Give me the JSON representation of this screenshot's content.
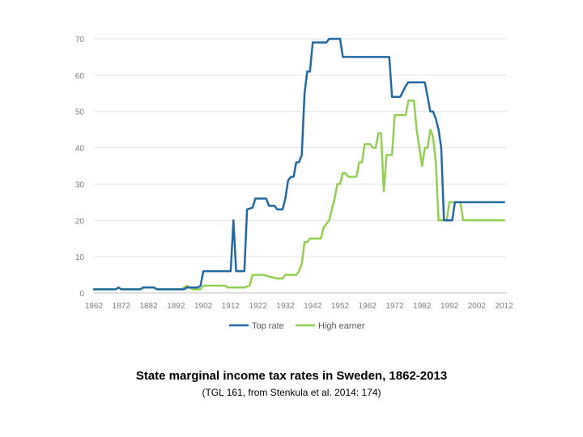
{
  "caption": {
    "title": "State marginal income tax rates in Sweden, 1862-2013",
    "source": "(TGL 161, from Stenkula et al. 2014: 174)"
  },
  "chart_data": {
    "type": "line",
    "title": "State marginal income tax rates in Sweden, 1862-2013",
    "xlabel": "",
    "ylabel": "",
    "xlim": [
      1862,
      2013
    ],
    "ylim": [
      0,
      70
    ],
    "x_ticks": [
      1862,
      1872,
      1882,
      1892,
      1902,
      1912,
      1922,
      1932,
      1942,
      1952,
      1962,
      1972,
      1982,
      1992,
      2002,
      2012
    ],
    "y_ticks": [
      0,
      10,
      20,
      30,
      40,
      50,
      60,
      70
    ],
    "grid": true,
    "legend_position": "bottom",
    "series": [
      {
        "name": "Top rate",
        "color": "#1f6aa5",
        "points": [
          [
            1862,
            1
          ],
          [
            1870,
            1
          ],
          [
            1871,
            1.5
          ],
          [
            1872,
            1
          ],
          [
            1879,
            1
          ],
          [
            1880,
            1.5
          ],
          [
            1884,
            1.5
          ],
          [
            1885,
            1
          ],
          [
            1895,
            1
          ],
          [
            1896,
            1.5
          ],
          [
            1900,
            1.5
          ],
          [
            1901,
            2
          ],
          [
            1902,
            6
          ],
          [
            1912,
            6
          ],
          [
            1913,
            20
          ],
          [
            1914,
            6
          ],
          [
            1917,
            6
          ],
          [
            1918,
            23
          ],
          [
            1920,
            23.5
          ],
          [
            1921,
            26
          ],
          [
            1925,
            26
          ],
          [
            1926,
            24
          ],
          [
            1928,
            24
          ],
          [
            1929,
            23
          ],
          [
            1931,
            23
          ],
          [
            1932,
            26
          ],
          [
            1933,
            31
          ],
          [
            1934,
            32
          ],
          [
            1935,
            32
          ],
          [
            1936,
            36
          ],
          [
            1937,
            36
          ],
          [
            1938,
            38
          ],
          [
            1939,
            55
          ],
          [
            1940,
            61
          ],
          [
            1941,
            61
          ],
          [
            1942,
            69
          ],
          [
            1947,
            69
          ],
          [
            1948,
            70
          ],
          [
            1952,
            70
          ],
          [
            1953,
            65
          ],
          [
            1970,
            65
          ],
          [
            1971,
            54
          ],
          [
            1974,
            54
          ],
          [
            1976,
            57
          ],
          [
            1977,
            58
          ],
          [
            1983,
            58
          ],
          [
            1984,
            54
          ],
          [
            1985,
            50
          ],
          [
            1986,
            50
          ],
          [
            1987,
            48
          ],
          [
            1988,
            45
          ],
          [
            1989,
            40
          ],
          [
            1990,
            20
          ],
          [
            1993,
            20
          ],
          [
            1994,
            25
          ],
          [
            2012,
            25
          ]
        ]
      },
      {
        "name": "High earner",
        "color": "#92d050",
        "points": [
          [
            1862,
            1
          ],
          [
            1870,
            1
          ],
          [
            1871,
            1.5
          ],
          [
            1872,
            1
          ],
          [
            1879,
            1
          ],
          [
            1880,
            1.5
          ],
          [
            1884,
            1.5
          ],
          [
            1885,
            1
          ],
          [
            1894,
            1
          ],
          [
            1896,
            2
          ],
          [
            1898,
            1
          ],
          [
            1901,
            1
          ],
          [
            1902,
            2
          ],
          [
            1910,
            2
          ],
          [
            1911,
            1.5
          ],
          [
            1917,
            1.5
          ],
          [
            1919,
            2
          ],
          [
            1920,
            5
          ],
          [
            1924,
            5
          ],
          [
            1926,
            4.5
          ],
          [
            1929,
            4
          ],
          [
            1931,
            4
          ],
          [
            1932,
            5
          ],
          [
            1936,
            5
          ],
          [
            1937,
            6
          ],
          [
            1938,
            8
          ],
          [
            1939,
            14
          ],
          [
            1940,
            14
          ],
          [
            1941,
            15
          ],
          [
            1945,
            15
          ],
          [
            1946,
            18
          ],
          [
            1948,
            20
          ],
          [
            1950,
            26
          ],
          [
            1951,
            30
          ],
          [
            1952,
            30
          ],
          [
            1953,
            33
          ],
          [
            1954,
            33
          ],
          [
            1955,
            32
          ],
          [
            1958,
            32
          ],
          [
            1959,
            36
          ],
          [
            1960,
            36
          ],
          [
            1961,
            41
          ],
          [
            1963,
            41
          ],
          [
            1964,
            40
          ],
          [
            1965,
            40
          ],
          [
            1966,
            44
          ],
          [
            1967,
            44
          ],
          [
            1968,
            28
          ],
          [
            1969,
            38
          ],
          [
            1971,
            38
          ],
          [
            1972,
            49
          ],
          [
            1976,
            49
          ],
          [
            1977,
            53
          ],
          [
            1979,
            53
          ],
          [
            1980,
            45
          ],
          [
            1981,
            40
          ],
          [
            1982,
            35
          ],
          [
            1983,
            40
          ],
          [
            1984,
            40
          ],
          [
            1985,
            45
          ],
          [
            1986,
            43
          ],
          [
            1987,
            36
          ],
          [
            1988,
            20
          ],
          [
            1991,
            20
          ],
          [
            1992,
            25
          ],
          [
            1996,
            25
          ],
          [
            1997,
            20
          ],
          [
            2012,
            20
          ]
        ]
      }
    ]
  }
}
